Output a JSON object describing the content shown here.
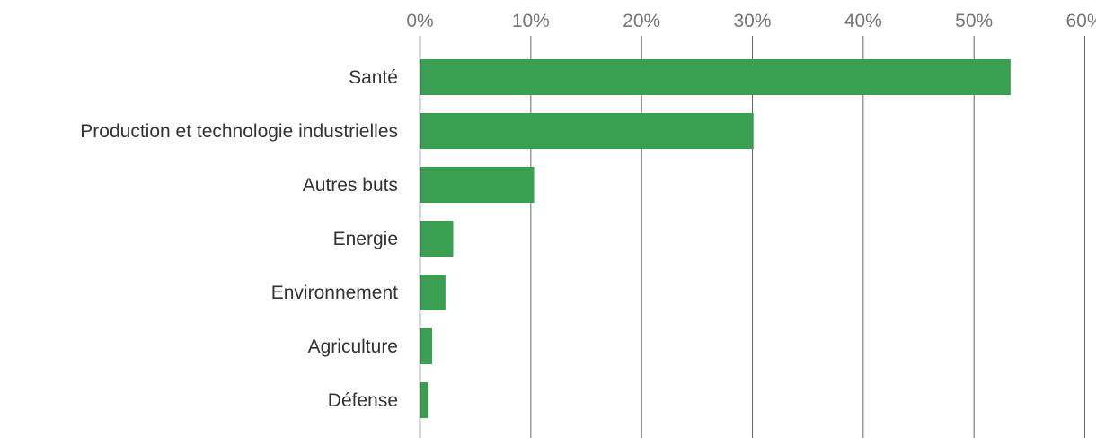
{
  "chart_data": {
    "type": "bar",
    "orientation": "horizontal",
    "title": "",
    "xlabel": "",
    "ylabel": "",
    "categories": [
      "Santé",
      "Production et technologie industrielles",
      "Autres buts",
      "Energie",
      "Environnement",
      "Agriculture",
      "Défense"
    ],
    "values": [
      53.3,
      30.1,
      10.3,
      3.0,
      2.3,
      1.1,
      0.7
    ],
    "xlim": [
      0,
      60
    ],
    "ticks": [
      0,
      10,
      20,
      30,
      40,
      50,
      60
    ],
    "tick_labels": [
      "0%",
      "10%",
      "20%",
      "30%",
      "40%",
      "50%",
      "60%"
    ],
    "axis_position": "top",
    "grid": true,
    "bar_color": "#38A050"
  }
}
